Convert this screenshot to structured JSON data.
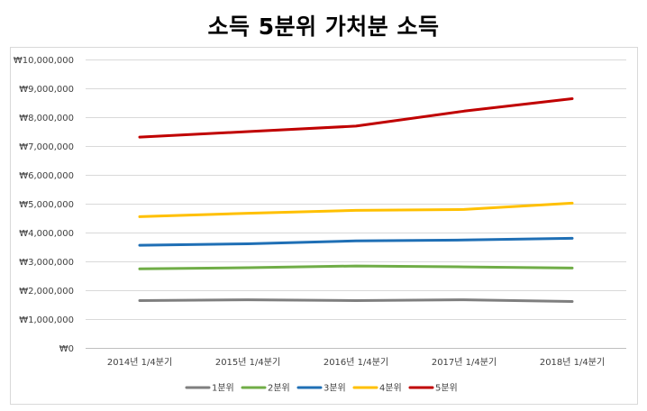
{
  "chart_data": {
    "type": "line",
    "title": "소득 5분위 가처분 소득",
    "xlabel": "",
    "ylabel": "",
    "categories": [
      "2014년 1/4분기",
      "2015년 1/4분기",
      "2016년 1/4분기",
      "2017년 1/4분기",
      "2018년 1/4분기"
    ],
    "ylim": [
      0,
      10000000
    ],
    "yticks": [
      0,
      1000000,
      2000000,
      3000000,
      4000000,
      5000000,
      6000000,
      7000000,
      8000000,
      9000000,
      10000000
    ],
    "ytick_labels": [
      "₩0",
      "₩1,000,000",
      "₩2,000,000",
      "₩3,000,000",
      "₩4,000,000",
      "₩5,000,000",
      "₩6,000,000",
      "₩7,000,000",
      "₩8,000,000",
      "₩9,000,000",
      "₩10,000,000"
    ],
    "grid": true,
    "legend_position": "bottom",
    "series": [
      {
        "name": "1분위",
        "color": "#7f7f7f",
        "values": [
          1640000,
          1670000,
          1640000,
          1670000,
          1610000
        ]
      },
      {
        "name": "2분위",
        "color": "#70ad47",
        "values": [
          2740000,
          2780000,
          2840000,
          2810000,
          2770000
        ]
      },
      {
        "name": "3분위",
        "color": "#1f6fb5",
        "values": [
          3560000,
          3610000,
          3710000,
          3740000,
          3800000
        ]
      },
      {
        "name": "4분위",
        "color": "#ffc000",
        "values": [
          4550000,
          4670000,
          4770000,
          4800000,
          5020000
        ]
      },
      {
        "name": "5분위",
        "color": "#c00000",
        "values": [
          7310000,
          7500000,
          7690000,
          8210000,
          8640000
        ]
      }
    ]
  }
}
